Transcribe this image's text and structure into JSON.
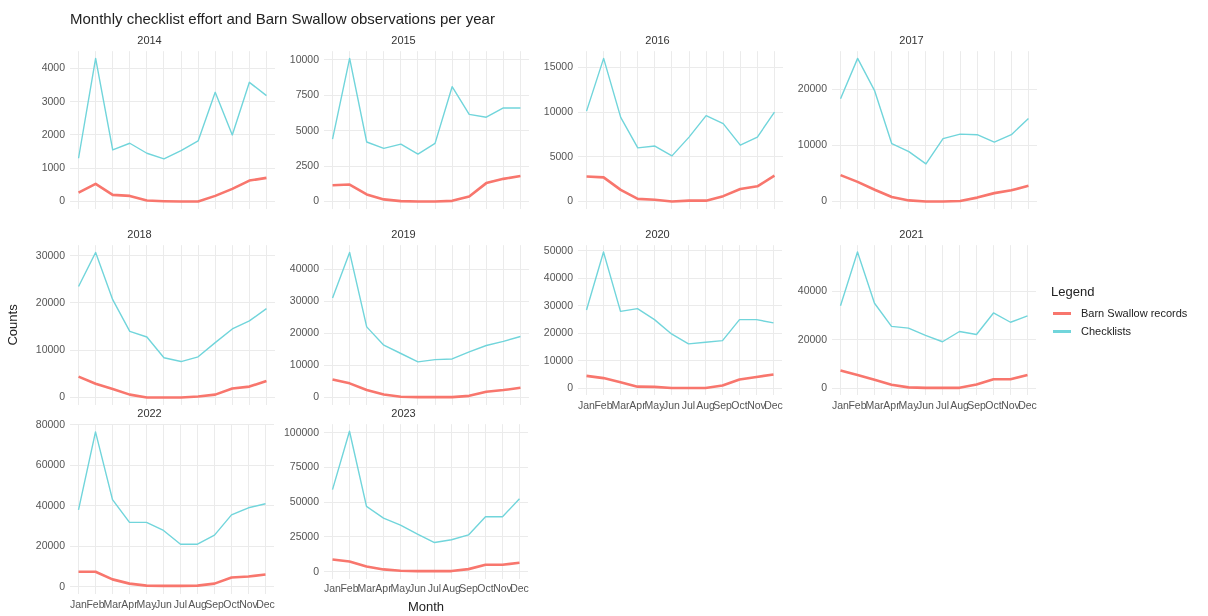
{
  "chart_data": [
    {
      "type": "line",
      "title": "Monthly checklist effort and Barn Swallow observations per year",
      "subtitle": "2014",
      "categories": [
        null,
        null,
        null,
        null,
        null,
        null,
        null,
        null,
        null,
        null,
        null,
        null
      ],
      "series": [
        {
          "color": "#f8766d",
          "values": [
            270,
            530,
            200,
            170,
            30,
            10,
            0,
            0,
            170,
            380,
            630,
            710
          ]
        },
        {
          "color": "#71d5db",
          "values": [
            1300,
            4300,
            1550,
            1750,
            1450,
            1280,
            1530,
            1820,
            3280,
            2000,
            3580,
            3180
          ]
        }
      ],
      "ylim": [
        -215,
        4515
      ],
      "yticks": [
        0,
        1000,
        2000,
        3000,
        4000
      ],
      "grid": true,
      "tick_labels": "y"
    },
    {
      "type": "line",
      "subtitle": "2015",
      "categories": [
        null,
        null,
        null,
        null,
        null,
        null,
        null,
        null,
        null,
        null,
        null,
        null
      ],
      "series": [
        {
          "color": "#f8766d",
          "values": [
            1150,
            1200,
            500,
            150,
            30,
            0,
            0,
            50,
            350,
            1300,
            1600,
            1800
          ]
        },
        {
          "color": "#71d5db",
          "values": [
            4400,
            10100,
            4200,
            3750,
            4050,
            3350,
            4100,
            8100,
            6150,
            5950,
            6600,
            6600
          ]
        }
      ],
      "ylim": [
        -505,
        10605
      ],
      "yticks": [
        0,
        2500,
        5000,
        7500,
        10000
      ],
      "grid": true,
      "tick_labels": "y"
    },
    {
      "type": "line",
      "subtitle": "2016",
      "categories": [
        null,
        null,
        null,
        null,
        null,
        null,
        null,
        null,
        null,
        null,
        null,
        null
      ],
      "series": [
        {
          "color": "#f8766d",
          "values": [
            2800,
            2700,
            1300,
            300,
            200,
            0,
            100,
            100,
            600,
            1400,
            1700,
            2900
          ]
        },
        {
          "color": "#71d5db",
          "values": [
            10100,
            16000,
            9400,
            6000,
            6200,
            5100,
            7200,
            9600,
            8700,
            6300,
            7200,
            10000
          ]
        }
      ],
      "ylim": [
        -800,
        16800
      ],
      "yticks": [
        0,
        5000,
        10000,
        15000
      ],
      "grid": true,
      "tick_labels": "y"
    },
    {
      "type": "line",
      "subtitle": "2017",
      "categories": [
        null,
        null,
        null,
        null,
        null,
        null,
        null,
        null,
        null,
        null,
        null,
        null
      ],
      "series": [
        {
          "color": "#f8766d",
          "values": [
            4700,
            3500,
            2100,
            800,
            200,
            0,
            0,
            100,
            700,
            1500,
            2000,
            2800
          ]
        },
        {
          "color": "#71d5db",
          "values": [
            18300,
            25500,
            19700,
            10300,
            8900,
            6700,
            11200,
            12000,
            11900,
            10600,
            11900,
            14800
          ]
        }
      ],
      "ylim": [
        -1275,
        26775
      ],
      "yticks": [
        0,
        10000,
        20000
      ],
      "grid": true,
      "tick_labels": "y"
    },
    {
      "type": "line",
      "subtitle": "2018",
      "ylabel": "Counts",
      "categories": [
        null,
        null,
        null,
        null,
        null,
        null,
        null,
        null,
        null,
        null,
        null,
        null
      ],
      "series": [
        {
          "color": "#f8766d",
          "values": [
            4400,
            2900,
            1800,
            600,
            0,
            0,
            0,
            200,
            600,
            1900,
            2300,
            3500
          ]
        },
        {
          "color": "#71d5db",
          "values": [
            23500,
            30700,
            20700,
            14000,
            12800,
            8400,
            7600,
            8600,
            11600,
            14500,
            16200,
            18800
          ]
        }
      ],
      "ylim": [
        -1535,
        32235
      ],
      "yticks": [
        0,
        10000,
        20000,
        30000
      ],
      "grid": true,
      "tick_labels": "y"
    },
    {
      "type": "line",
      "subtitle": "2019",
      "categories": [
        null,
        null,
        null,
        null,
        null,
        null,
        null,
        null,
        null,
        null,
        null,
        null
      ],
      "series": [
        {
          "color": "#f8766d",
          "values": [
            5600,
            4400,
            2300,
            900,
            200,
            100,
            100,
            100,
            500,
            1800,
            2300,
            3000
          ]
        },
        {
          "color": "#71d5db",
          "values": [
            31000,
            45200,
            22000,
            16300,
            13700,
            11100,
            11800,
            12000,
            14200,
            16200,
            17500,
            19000
          ]
        }
      ],
      "ylim": [
        -2260,
        47460
      ],
      "yticks": [
        0,
        10000,
        20000,
        30000,
        40000
      ],
      "grid": true,
      "tick_labels": "y"
    },
    {
      "type": "line",
      "subtitle": "2020",
      "categories": [
        "Jan",
        "Feb",
        "Mar",
        "Apr",
        "May",
        "Jun",
        "Jul",
        "Aug",
        "Sep",
        "Oct",
        "Nov",
        "Dec"
      ],
      "series": [
        {
          "color": "#f8766d",
          "values": [
            4600,
            3800,
            2300,
            700,
            600,
            200,
            200,
            200,
            1100,
            3300,
            4200,
            5100
          ]
        },
        {
          "color": "#71d5db",
          "values": [
            28500,
            49500,
            28000,
            29000,
            25000,
            19800,
            16200,
            16800,
            17400,
            25000,
            25000,
            23800
          ]
        }
      ],
      "ylim": [
        -2475,
        51975
      ],
      "yticks": [
        0,
        10000,
        20000,
        30000,
        40000,
        50000
      ],
      "grid": true
    },
    {
      "type": "line",
      "subtitle": "2021",
      "legend": "right",
      "legend_title": "Legend",
      "categories": [
        "Jan",
        "Feb",
        "Mar",
        "Apr",
        "May",
        "Jun",
        "Jul",
        "Aug",
        "Sep",
        "Oct",
        "Nov",
        "Dec"
      ],
      "series": [
        {
          "name": "Barn Swallow records",
          "color": "#f8766d",
          "values": [
            7400,
            5600,
            3600,
            1600,
            500,
            300,
            300,
            300,
            1700,
            3800,
            3800,
            5600
          ]
        },
        {
          "name": "Checklists",
          "color": "#71d5db",
          "values": [
            34000,
            56000,
            35000,
            25500,
            24800,
            21800,
            19200,
            23400,
            22200,
            31000,
            27200,
            29800
          ]
        }
      ],
      "ylim": [
        -2800,
        58800
      ],
      "yticks": [
        0,
        20000,
        40000
      ],
      "grid": true
    },
    {
      "type": "line",
      "subtitle": "2022",
      "categories": [
        "Jan",
        "Feb",
        "Mar",
        "Apr",
        "May",
        "Jun",
        "Jul",
        "Aug",
        "Sep",
        "Oct",
        "Nov",
        "Dec"
      ],
      "series": [
        {
          "color": "#f8766d",
          "values": [
            7400,
            7400,
            3600,
            1500,
            500,
            400,
            400,
            500,
            1500,
            4500,
            5000,
            6000
          ]
        },
        {
          "color": "#71d5db",
          "values": [
            38000,
            76500,
            43000,
            31800,
            31800,
            27800,
            21000,
            21000,
            25500,
            35500,
            39000,
            41000
          ]
        }
      ],
      "ylim": [
        -3825,
        80325
      ],
      "yticks": [
        0,
        20000,
        40000,
        60000,
        80000
      ],
      "grid": true
    },
    {
      "type": "line",
      "subtitle": "2023",
      "xlabel": "Month",
      "categories": [
        "Jan",
        "Feb",
        "Mar",
        "Apr",
        "May",
        "Jun",
        "Jul",
        "Aug",
        "Sep",
        "Oct",
        "Nov",
        "Dec"
      ],
      "series": [
        {
          "color": "#f8766d",
          "values": [
            8800,
            7400,
            3800,
            1700,
            700,
            500,
            500,
            500,
            1900,
            5000,
            5000,
            6500
          ]
        },
        {
          "color": "#71d5db",
          "values": [
            59000,
            101000,
            47000,
            38500,
            33500,
            27000,
            21000,
            23000,
            26500,
            39500,
            39500,
            52500
          ]
        }
      ],
      "ylim": [
        -5050,
        106050
      ],
      "yticks": [
        0,
        25000,
        50000,
        75000,
        100000
      ],
      "grid": true
    }
  ]
}
